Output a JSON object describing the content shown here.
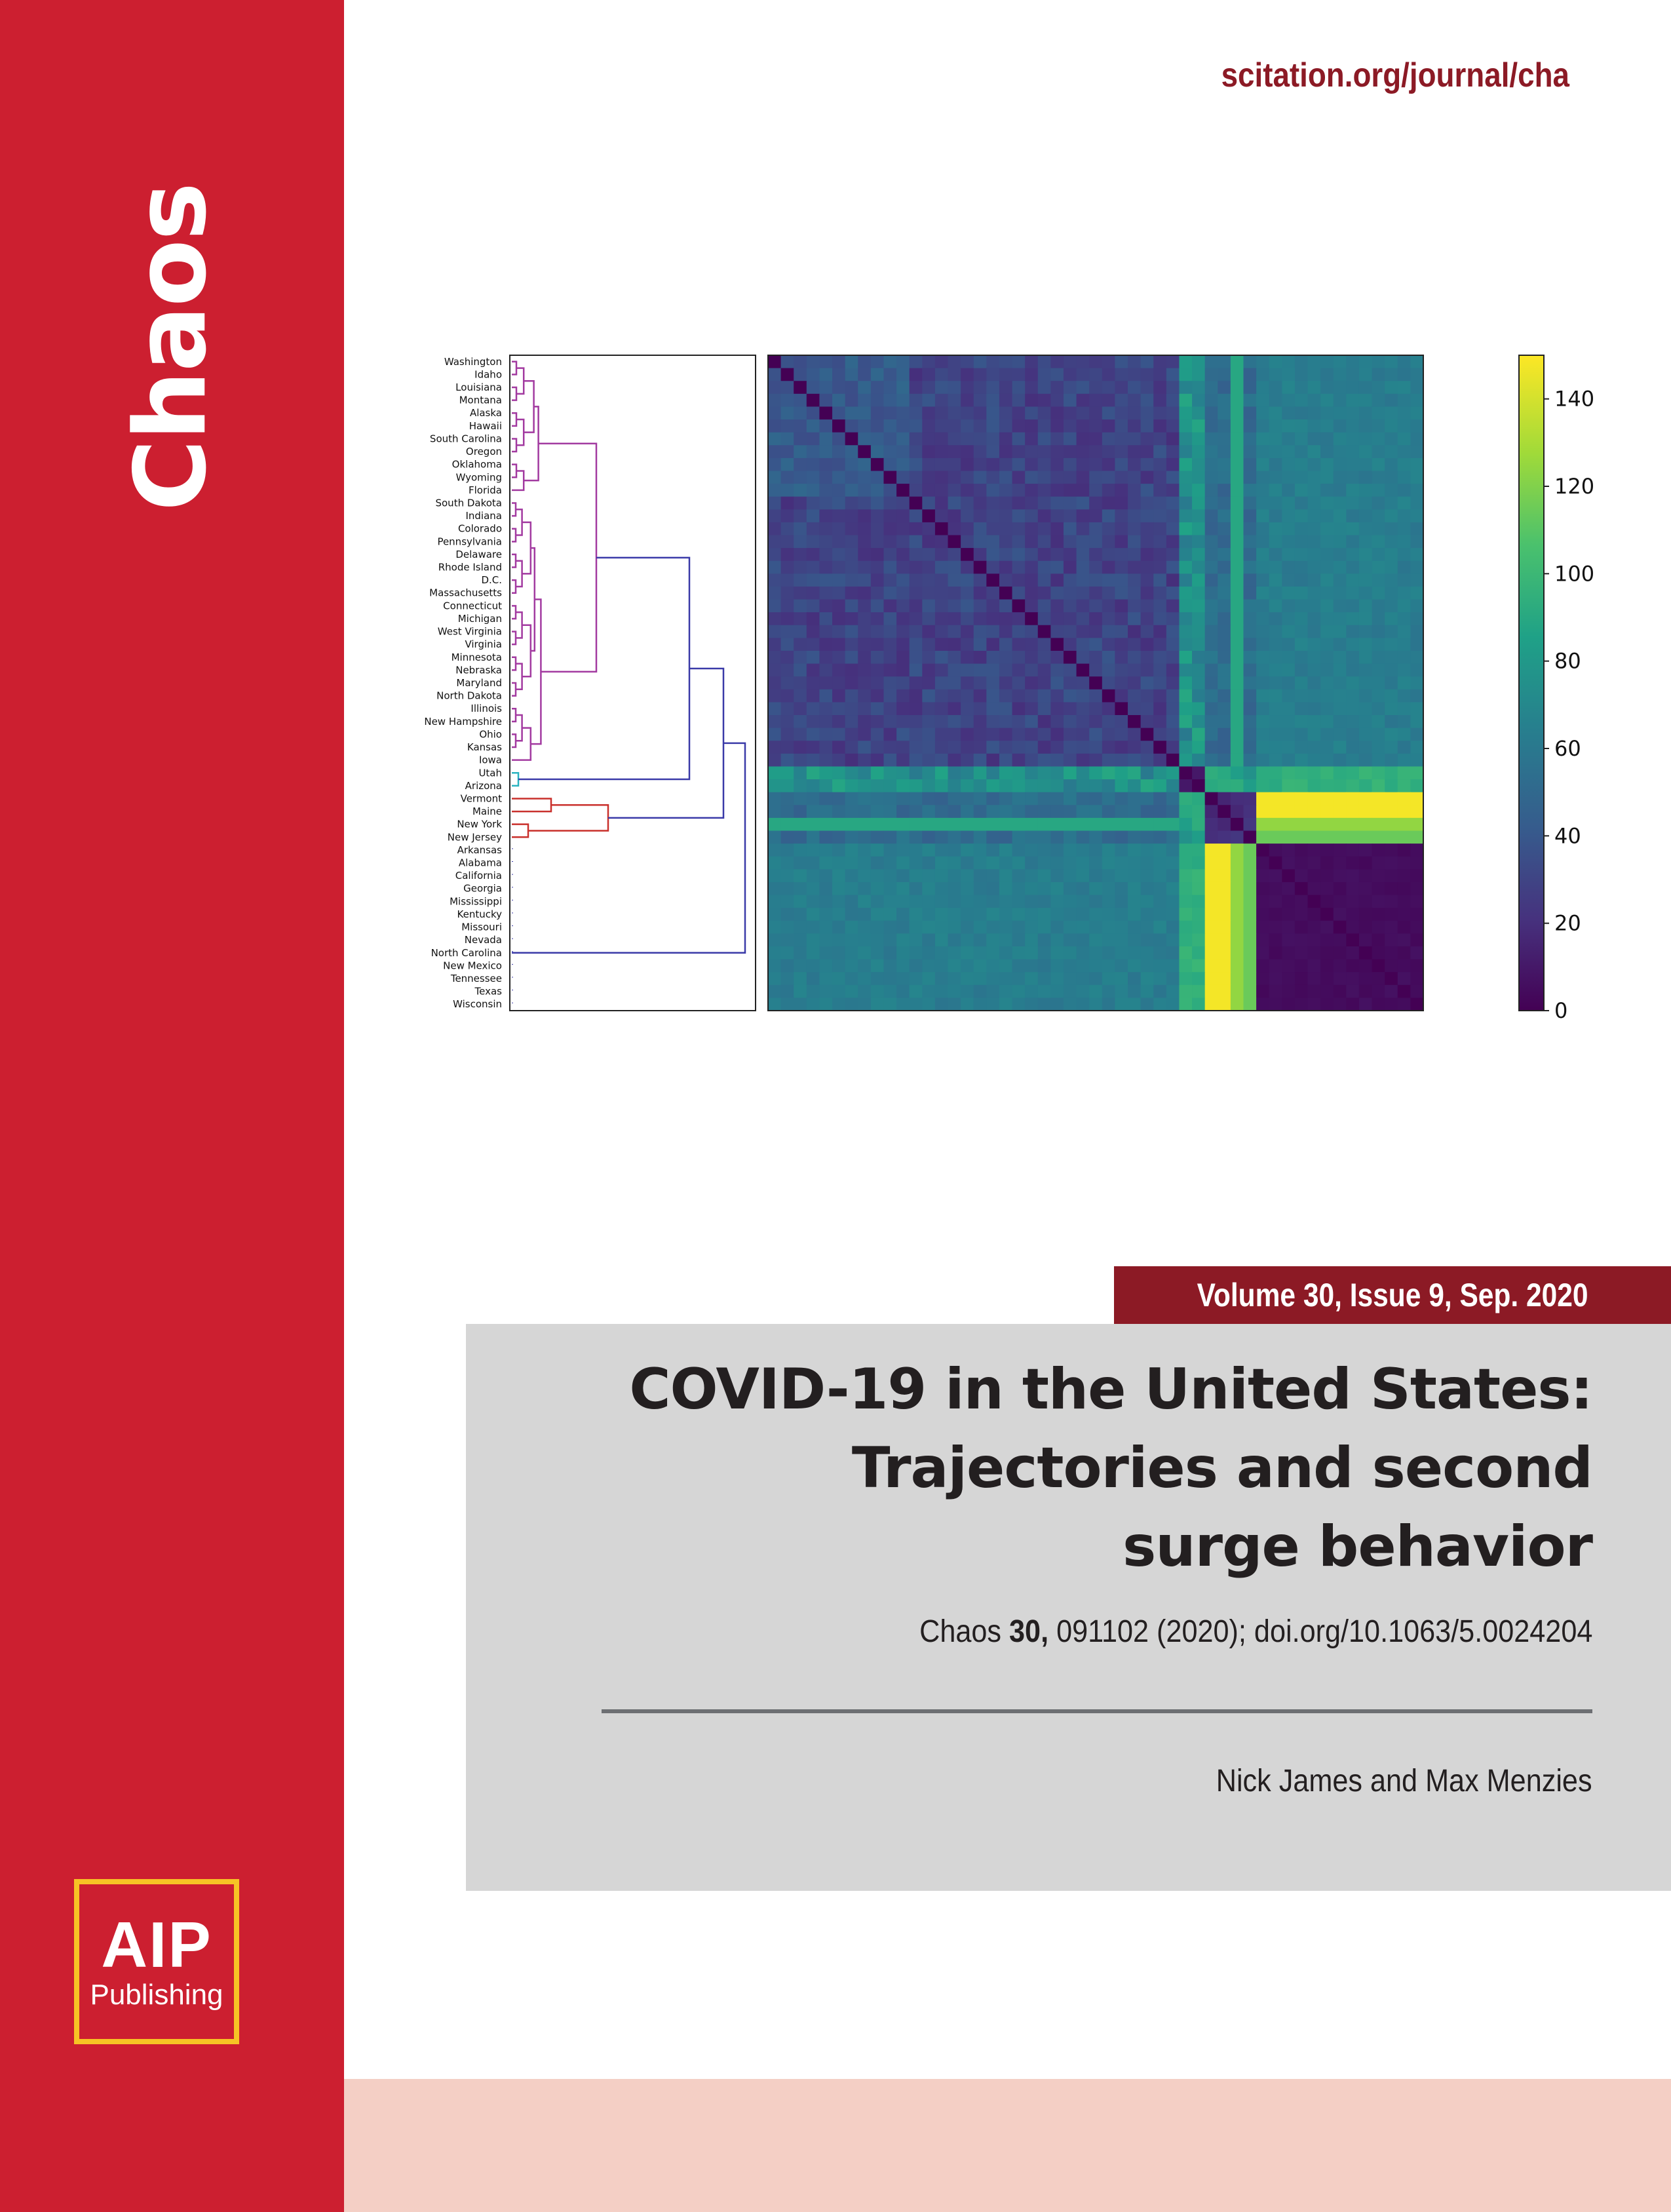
{
  "journal": {
    "name": "Chaos",
    "url": "scitation.org/journal/cha",
    "volume_line": "Volume 30, Issue 9, Sep. 2020",
    "publisher_logo": {
      "line1": "AIP",
      "line2": "Publishing"
    }
  },
  "article": {
    "title_lines": [
      "COVID-19 in the United States:",
      "Trajectories and second",
      "surge behavior"
    ],
    "citation": {
      "journal": "Chaos",
      "volume": "30,",
      "rest": "091102 (2020); doi.org/10.1063/5.0024204"
    },
    "authors": "Nick James and Max Menzies"
  },
  "colors": {
    "brand_red": "#cc1f30",
    "dark_red": "#8c1a25",
    "logo_yellow": "#f7c325",
    "panel_gray": "#d6d6d6",
    "footer_pink": "#f4cfc5"
  },
  "chart_data": {
    "type": "heatmap",
    "dendrogram_labels": [
      "Washington",
      "Idaho",
      "Louisiana",
      "Montana",
      "Alaska",
      "Hawaii",
      "South Carolina",
      "Oregon",
      "Oklahoma",
      "Wyoming",
      "Florida",
      "South Dakota",
      "Indiana",
      "Colorado",
      "Pennsylvania",
      "Delaware",
      "Rhode Island",
      "D.C.",
      "Massachusetts",
      "Connecticut",
      "Michigan",
      "West Virginia",
      "Virginia",
      "Minnesota",
      "Nebraska",
      "Maryland",
      "North Dakota",
      "Illinois",
      "New Hampshire",
      "Ohio",
      "Kansas",
      "Iowa",
      "Utah",
      "Arizona",
      "Vermont",
      "Maine",
      "New York",
      "New Jersey",
      "Arkansas",
      "Alabama",
      "California",
      "Georgia",
      "Mississippi",
      "Kentucky",
      "Missouri",
      "Nevada",
      "North Carolina",
      "New Mexico",
      "Tennessee",
      "Texas",
      "Wisconsin"
    ],
    "cluster_colors": [
      "#a23aa0",
      "#2bb3c0",
      "#c9302c",
      "#3a3aa8"
    ],
    "colorbar": {
      "ticks": [
        "0",
        "20",
        "40",
        "60",
        "80",
        "100",
        "120",
        "140"
      ],
      "min": 0,
      "max": 150
    },
    "matrix_description_levels": {
      "cluster_A_internal": 30,
      "cluster_A_vs_B": 60,
      "cluster_C_internal": 10,
      "cluster_C_vs_others": 50,
      "cluster_D_internal": 5,
      "cluster_D_vs_A": 150
    }
  }
}
